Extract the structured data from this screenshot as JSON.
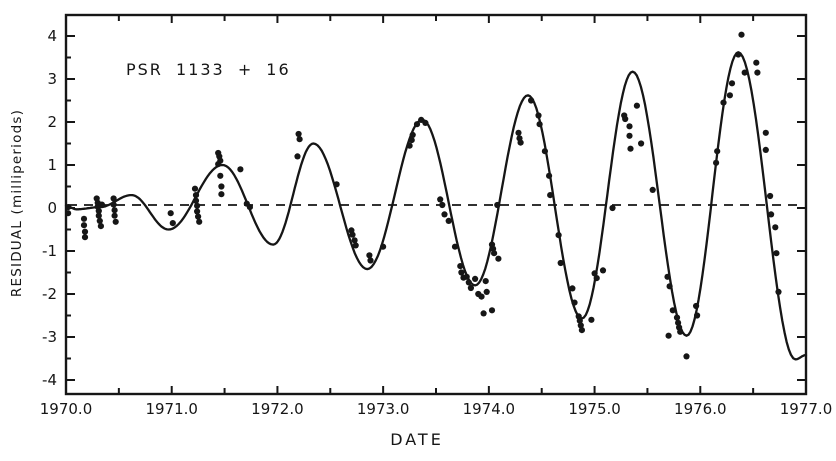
{
  "figure": {
    "background_color": "#ffffff",
    "ink_color": "#161616"
  },
  "chart_data": {
    "type": "scatter",
    "title": "PSR 1133 + 16",
    "xlabel": "DATE",
    "ylabel": "RESIDUAL (milliperiods)",
    "xlim": [
      1970.0,
      1977.0
    ],
    "ylim": [
      -4.3,
      4.5
    ],
    "grid": false,
    "legend": false,
    "x_tick_values": [
      1970,
      1971,
      1972,
      1973,
      1974,
      1975,
      1976,
      1977
    ],
    "x_tick_labels": [
      "1970.0",
      "1971.0",
      "1972.0",
      "1973.0",
      "1974.0",
      "1975.0",
      "1976.0",
      "1977.0"
    ],
    "x_minor_tick_step": 0.5,
    "y_tick_values": [
      4,
      3,
      2,
      1,
      0,
      -1,
      -2,
      -3,
      -4
    ],
    "y_tick_labels": [
      "4",
      "3",
      "2",
      "1",
      "0",
      "-1",
      "-2",
      "-3",
      "-4"
    ],
    "y_minor_tick_step": 0.5,
    "reference_line": {
      "style": "dashed",
      "value": 0.07
    },
    "series": [
      {
        "name": "fit-curve",
        "type": "line",
        "description": "growing-amplitude sinusoidal timing-residual fit, keypoints are curve extrema [date, residual]",
        "keypoints": [
          [
            1970.0,
            0.05
          ],
          [
            1970.1,
            -0.03
          ],
          [
            1970.32,
            0.02
          ],
          [
            1970.62,
            0.3
          ],
          [
            1970.97,
            -0.5
          ],
          [
            1971.48,
            1.0
          ],
          [
            1971.96,
            -0.85
          ],
          [
            1972.34,
            1.5
          ],
          [
            1972.85,
            -1.42
          ],
          [
            1973.37,
            2.05
          ],
          [
            1973.87,
            -1.8
          ],
          [
            1974.37,
            2.62
          ],
          [
            1974.88,
            -2.57
          ],
          [
            1975.36,
            3.17
          ],
          [
            1975.87,
            -2.97
          ],
          [
            1976.36,
            3.62
          ],
          [
            1976.9,
            -3.52
          ],
          [
            1977.0,
            -3.42
          ]
        ]
      },
      {
        "name": "observed-residuals",
        "type": "scatter",
        "points": [
          [
            1970.02,
            0.02
          ],
          [
            1970.02,
            -0.12
          ],
          [
            1970.17,
            -0.25
          ],
          [
            1970.17,
            -0.4
          ],
          [
            1970.18,
            -0.55
          ],
          [
            1970.18,
            -0.68
          ],
          [
            1970.29,
            0.22
          ],
          [
            1970.3,
            0.12
          ],
          [
            1970.3,
            0.03
          ],
          [
            1970.31,
            -0.07
          ],
          [
            1970.31,
            -0.18
          ],
          [
            1970.32,
            -0.3
          ],
          [
            1970.33,
            -0.42
          ],
          [
            1970.34,
            0.08
          ],
          [
            1970.45,
            0.22
          ],
          [
            1970.45,
            0.08
          ],
          [
            1970.46,
            -0.05
          ],
          [
            1970.46,
            -0.18
          ],
          [
            1970.47,
            -0.32
          ],
          [
            1970.99,
            -0.12
          ],
          [
            1971.01,
            -0.35
          ],
          [
            1971.22,
            0.45
          ],
          [
            1971.23,
            0.3
          ],
          [
            1971.23,
            0.17
          ],
          [
            1971.24,
            0.05
          ],
          [
            1971.24,
            -0.08
          ],
          [
            1971.25,
            -0.2
          ],
          [
            1971.26,
            -0.32
          ],
          [
            1971.44,
            1.28
          ],
          [
            1971.44,
            1.02
          ],
          [
            1971.45,
            1.2
          ],
          [
            1971.46,
            1.1
          ],
          [
            1971.46,
            0.75
          ],
          [
            1971.47,
            0.5
          ],
          [
            1971.47,
            0.32
          ],
          [
            1971.65,
            0.9
          ],
          [
            1971.71,
            0.1
          ],
          [
            1971.74,
            0.02
          ],
          [
            1972.19,
            1.2
          ],
          [
            1972.2,
            1.72
          ],
          [
            1972.21,
            1.6
          ],
          [
            1972.56,
            0.55
          ],
          [
            1972.7,
            -0.52
          ],
          [
            1972.71,
            -0.62
          ],
          [
            1972.73,
            -0.75
          ],
          [
            1972.74,
            -0.87
          ],
          [
            1972.87,
            -1.1
          ],
          [
            1972.88,
            -1.22
          ],
          [
            1973.0,
            -0.9
          ],
          [
            1973.25,
            1.45
          ],
          [
            1973.27,
            1.58
          ],
          [
            1973.28,
            1.7
          ],
          [
            1973.32,
            1.95
          ],
          [
            1973.36,
            2.05
          ],
          [
            1973.4,
            1.98
          ],
          [
            1973.54,
            0.2
          ],
          [
            1973.56,
            0.07
          ],
          [
            1973.58,
            -0.15
          ],
          [
            1973.62,
            -0.3
          ],
          [
            1973.68,
            -0.9
          ],
          [
            1973.73,
            -1.35
          ],
          [
            1973.74,
            -1.5
          ],
          [
            1973.76,
            -1.62
          ],
          [
            1973.79,
            -1.6
          ],
          [
            1973.81,
            -1.73
          ],
          [
            1973.83,
            -1.86
          ],
          [
            1973.87,
            -1.65
          ],
          [
            1973.9,
            -2.0
          ],
          [
            1973.93,
            -2.06
          ],
          [
            1973.95,
            -2.45
          ],
          [
            1973.97,
            -1.7
          ],
          [
            1973.98,
            -1.95
          ],
          [
            1974.03,
            -0.85
          ],
          [
            1974.04,
            -0.95
          ],
          [
            1974.05,
            -1.05
          ],
          [
            1974.09,
            -1.18
          ],
          [
            1974.03,
            -2.38
          ],
          [
            1974.08,
            0.07
          ],
          [
            1974.28,
            1.75
          ],
          [
            1974.29,
            1.62
          ],
          [
            1974.3,
            1.52
          ],
          [
            1974.4,
            2.5
          ],
          [
            1974.47,
            2.15
          ],
          [
            1974.48,
            1.95
          ],
          [
            1974.53,
            1.32
          ],
          [
            1974.57,
            0.75
          ],
          [
            1974.58,
            0.3
          ],
          [
            1974.66,
            -0.63
          ],
          [
            1974.68,
            -1.28
          ],
          [
            1974.79,
            -1.87
          ],
          [
            1974.81,
            -2.2
          ],
          [
            1974.85,
            -2.52
          ],
          [
            1974.86,
            -2.62
          ],
          [
            1974.87,
            -2.73
          ],
          [
            1974.88,
            -2.84
          ],
          [
            1974.97,
            -2.6
          ],
          [
            1975.0,
            -1.52
          ],
          [
            1975.02,
            -1.63
          ],
          [
            1975.08,
            -1.45
          ],
          [
            1975.17,
            0.0
          ],
          [
            1975.28,
            2.15
          ],
          [
            1975.29,
            2.07
          ],
          [
            1975.33,
            1.9
          ],
          [
            1975.33,
            1.68
          ],
          [
            1975.34,
            1.38
          ],
          [
            1975.4,
            2.38
          ],
          [
            1975.44,
            1.5
          ],
          [
            1975.55,
            0.42
          ],
          [
            1975.69,
            -1.6
          ],
          [
            1975.7,
            -2.97
          ],
          [
            1975.71,
            -1.82
          ],
          [
            1975.74,
            -2.38
          ],
          [
            1975.78,
            -2.55
          ],
          [
            1975.79,
            -2.67
          ],
          [
            1975.8,
            -2.78
          ],
          [
            1975.81,
            -2.88
          ],
          [
            1975.87,
            -3.45
          ],
          [
            1975.96,
            -2.28
          ],
          [
            1975.97,
            -2.5
          ],
          [
            1976.15,
            1.05
          ],
          [
            1976.16,
            1.32
          ],
          [
            1976.22,
            2.45
          ],
          [
            1976.28,
            2.62
          ],
          [
            1976.3,
            2.9
          ],
          [
            1976.36,
            3.57
          ],
          [
            1976.39,
            4.03
          ],
          [
            1976.42,
            3.15
          ],
          [
            1976.53,
            3.38
          ],
          [
            1976.54,
            3.15
          ],
          [
            1976.62,
            1.75
          ],
          [
            1976.62,
            1.35
          ],
          [
            1976.66,
            0.28
          ],
          [
            1976.67,
            -0.15
          ],
          [
            1976.71,
            -0.45
          ],
          [
            1976.72,
            -1.05
          ],
          [
            1976.74,
            -1.95
          ]
        ]
      }
    ]
  }
}
